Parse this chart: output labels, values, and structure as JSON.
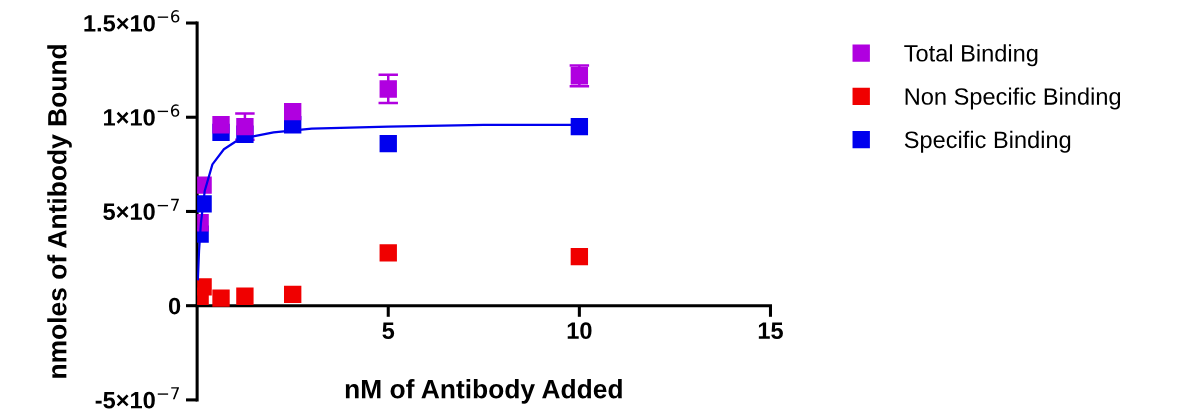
{
  "chart_data": {
    "type": "scatter",
    "xlabel": "nM of Antibody Added",
    "ylabel": "nmoles of Antibody Bound",
    "x": [
      0.078,
      0.156,
      0.625,
      1.25,
      2.5,
      5,
      10
    ],
    "series": [
      {
        "name": "Total Binding",
        "color": "#b000e0",
        "values": [
          4.4e-07,
          6.4e-07,
          9.6e-07,
          9.5e-07,
          1.03e-06,
          1.15e-06,
          1.22e-06
        ],
        "errors": [
          null,
          null,
          null,
          7e-08,
          null,
          7.5e-08,
          5.5e-08
        ]
      },
      {
        "name": "Non Specific Binding",
        "color": "#f00000",
        "values": [
          5e-08,
          1e-07,
          4e-08,
          5e-08,
          6e-08,
          2.8e-07,
          2.6e-07
        ]
      },
      {
        "name": "Specific Binding",
        "color": "#0000ee",
        "values": [
          3.8e-07,
          5.4e-07,
          9.2e-07,
          9.1e-07,
          9.6e-07,
          8.6e-07,
          9.5e-07
        ]
      },
      {
        "type": "line",
        "marker": "none",
        "color": "#0000ee",
        "x": [
          0.02,
          0.05,
          0.1,
          0.2,
          0.4,
          0.7,
          1,
          1.5,
          2,
          3,
          5,
          7.5,
          10
        ],
        "values": [
          1.4e-07,
          2.9e-07,
          4.4e-07,
          6.1e-07,
          7.5e-07,
          8.3e-07,
          8.7e-07,
          9e-07,
          9.2e-07,
          9.4e-07,
          9.5e-07,
          9.6e-07,
          9.6e-07
        ]
      }
    ],
    "marker": "square",
    "xlim": [
      0,
      15
    ],
    "xticks": [
      5,
      10,
      15
    ],
    "ylim": [
      -5e-07,
      1.5e-06
    ],
    "yticks": [
      {
        "value": -5e-07,
        "label": "-5×10$^{−7}$"
      },
      {
        "value": 0,
        "label": "0"
      },
      {
        "value": 5e-07,
        "label": "5×10$^{−7}$"
      },
      {
        "value": 1e-06,
        "label": "1×10$^{−6}$"
      },
      {
        "value": 1.5e-06,
        "label": "1.5×10$^{−6}$"
      }
    ],
    "grid": false,
    "legend": "right"
  }
}
